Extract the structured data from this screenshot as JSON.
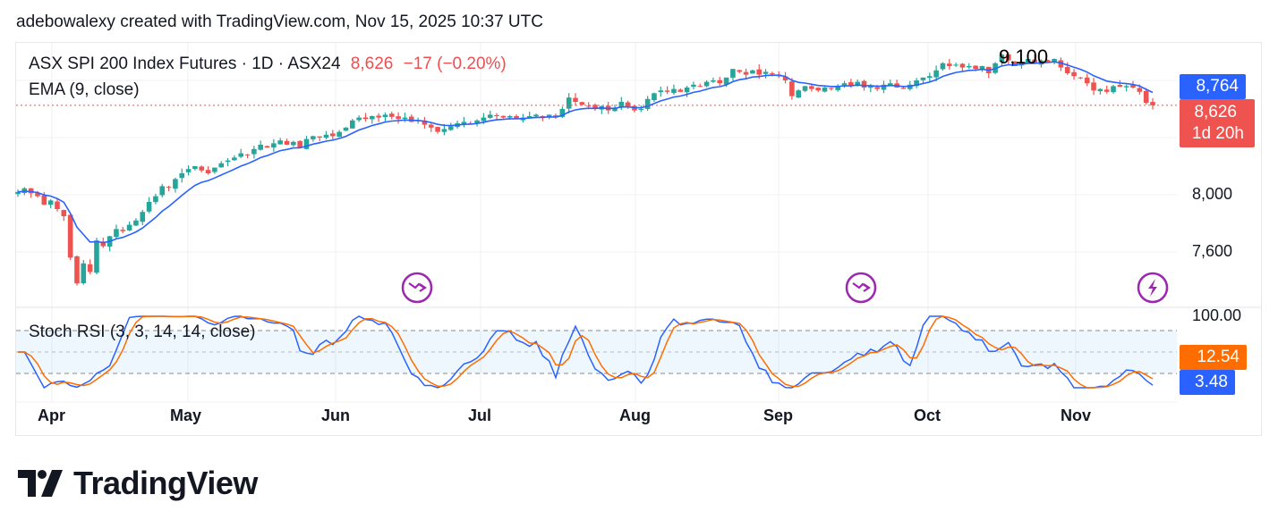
{
  "credit": "adebowalexy created with TradingView.com, Nov 15, 2025 10:37 UTC",
  "legend": {
    "symbol": "ASX SPI 200 Index Futures · 1D · ASX24",
    "last": "8,626",
    "change": "−17 (−0.20%)",
    "ema": "EMA (9, close)",
    "stoch": "Stoch RSI (3, 3, 14, 14, close)"
  },
  "overlay_text": "9,100",
  "price_axis": {
    "ticks": [
      "8,000",
      "7,600"
    ],
    "ema_label": "8,764",
    "price_label": "8,626",
    "countdown": "1d 20h"
  },
  "stoch_axis": {
    "top": "100.00",
    "d_label": "12.54",
    "k_label": "3.48"
  },
  "colors": {
    "up": "#26a69a",
    "down": "#ef5350",
    "ema": "#2962ff",
    "stoch_k": "#2962ff",
    "stoch_d": "#ff6d00",
    "events": "#9c27b0"
  },
  "events": [
    {
      "icon": "dividend-arrow-icon",
      "month": "Jun"
    },
    {
      "icon": "dividend-arrow-icon",
      "month": "Sep"
    },
    {
      "icon": "lightning-icon",
      "month": "Nov"
    }
  ],
  "logo": "TradingView",
  "chart_data": {
    "type": "candlestick",
    "timeframe": "1D",
    "x_tick_labels": [
      "Apr",
      "May",
      "Jun",
      "Jul",
      "Aug",
      "Sep",
      "Oct",
      "Nov"
    ],
    "y_range": [
      7300,
      9200
    ],
    "grid": true,
    "closes": [
      8020,
      8045,
      8010,
      7990,
      7930,
      7960,
      7900,
      7850,
      7560,
      7380,
      7520,
      7460,
      7680,
      7640,
      7710,
      7760,
      7745,
      7790,
      7820,
      7880,
      7950,
      7990,
      8060,
      8050,
      8110,
      8150,
      8180,
      8200,
      8170,
      8150,
      8190,
      8220,
      8240,
      8260,
      8290,
      8280,
      8320,
      8350,
      8330,
      8360,
      8380,
      8350,
      8370,
      8330,
      8390,
      8410,
      8400,
      8420,
      8410,
      8440,
      8470,
      8520,
      8540,
      8530,
      8550,
      8540,
      8560,
      8545,
      8530,
      8540,
      8510,
      8520,
      8490,
      8470,
      8440,
      8460,
      8480,
      8500,
      8510,
      8500,
      8520,
      8540,
      8560,
      8550,
      8540,
      8550,
      8530,
      8540,
      8550,
      8560,
      8540,
      8560,
      8540,
      8600,
      8680,
      8650,
      8630,
      8620,
      8600,
      8620,
      8590,
      8610,
      8650,
      8620,
      8590,
      8600,
      8670,
      8710,
      8730,
      8720,
      8740,
      8720,
      8750,
      8770,
      8760,
      8790,
      8800,
      8780,
      8820,
      8880,
      8860,
      8840,
      8870,
      8840,
      8860,
      8850,
      8830,
      8800,
      8690,
      8730,
      8760,
      8740,
      8730,
      8750,
      8740,
      8760,
      8780,
      8760,
      8790,
      8750,
      8760,
      8740,
      8770,
      8780,
      8750,
      8740,
      8770,
      8800,
      8820,
      8830,
      8870,
      8920,
      8900,
      8910,
      8890,
      8900,
      8880,
      8900,
      8850,
      8920,
      8980,
      8940,
      8900,
      8930,
      8950,
      8920,
      8940,
      8930,
      8950,
      8890,
      8850,
      8830,
      8820,
      8780,
      8730,
      8740,
      8720,
      8760,
      8755,
      8760,
      8750,
      8720,
      8643,
      8626
    ],
    "last_close": 8626,
    "ema_last": 8764,
    "stoch_rsi_last": {
      "k": 3.48,
      "d": 12.54
    },
    "stoch_levels": [
      80,
      50,
      20
    ]
  }
}
